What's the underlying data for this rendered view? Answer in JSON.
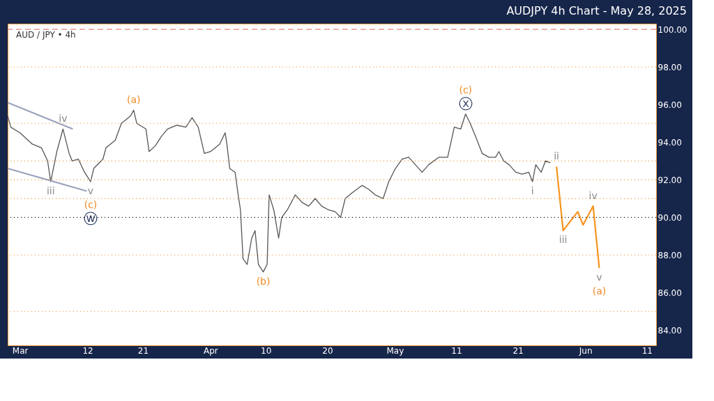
{
  "chart_data": {
    "type": "line",
    "title": "AUDJPY 4h Chart - May 28, 2025",
    "xlim": [
      "2025-02-27",
      "2025-06-12T12:00"
    ],
    "xticks": [
      {
        "value": "2025-03-01",
        "label": "Mar"
      },
      {
        "value": "2025-03-12",
        "label": "12"
      },
      {
        "value": "2025-03-21",
        "label": "21"
      },
      {
        "value": "2025-04-01",
        "label": "Apr"
      },
      {
        "value": "2025-04-10",
        "label": "10"
      },
      {
        "value": "2025-04-20",
        "label": "20"
      },
      {
        "value": "2025-05-01",
        "label": "May"
      },
      {
        "value": "2025-05-11",
        "label": "11"
      },
      {
        "value": "2025-05-21",
        "label": "21"
      },
      {
        "value": "2025-06-01",
        "label": "Jun"
      },
      {
        "value": "2025-06-11",
        "label": "11"
      }
    ],
    "ylim": [
      83.2,
      100.3
    ],
    "yticks": [
      {
        "value": 84,
        "label": "84.00"
      },
      {
        "value": 86,
        "label": "86.00"
      },
      {
        "value": 88,
        "label": "88.00"
      },
      {
        "value": 90,
        "label": "90.00"
      },
      {
        "value": 92,
        "label": "92.00"
      },
      {
        "value": 94,
        "label": "94.00"
      },
      {
        "value": 96,
        "label": "96.00"
      },
      {
        "value": 98,
        "label": "98.00"
      },
      {
        "value": 100,
        "label": "100.00"
      }
    ],
    "grid": false,
    "series": [
      {
        "color": "#555555",
        "line_style": "solid",
        "x": [
          "2025-02-27",
          "2025-02-27T12:00",
          "2025-03-01",
          "2025-03-03",
          "2025-03-04T12:00",
          "2025-03-05T12:00",
          "2025-03-06",
          "2025-03-07",
          "2025-03-08",
          "2025-03-09",
          "2025-03-09T12:00",
          "2025-03-10T12:00",
          "2025-03-11T12:00",
          "2025-03-12T12:00",
          "2025-03-13",
          "2025-03-14T12:00",
          "2025-03-15",
          "2025-03-16T12:00",
          "2025-03-17T12:00",
          "2025-03-19",
          "2025-03-19T12:00",
          "2025-03-20",
          "2025-03-21T12:00",
          "2025-03-22",
          "2025-03-23",
          "2025-03-24",
          "2025-03-25",
          "2025-03-26T12:00",
          "2025-03-28",
          "2025-03-29",
          "2025-03-30",
          "2025-03-31",
          "2025-04-01",
          "2025-04-02T12:00",
          "2025-04-03T09:00",
          "2025-04-03T16:00",
          "2025-04-04T03:00",
          "2025-04-05",
          "2025-04-05T12:00",
          "2025-04-05T21:00",
          "2025-04-06T07:00",
          "2025-04-06T23:00",
          "2025-04-07T17:00",
          "2025-04-08T06:00",
          "2025-04-08T19:00",
          "2025-04-09T14:00",
          "2025-04-10T05:00",
          "2025-04-10T13:00",
          "2025-04-11T07:00",
          "2025-04-12T02:00",
          "2025-04-12T14:00",
          "2025-04-13T12:00",
          "2025-04-14T19:00",
          "2025-04-15T21:00",
          "2025-04-16T23:00",
          "2025-04-18T01:00",
          "2025-04-19T02:00",
          "2025-04-20T05:00",
          "2025-04-21T07:00",
          "2025-04-22T04:00",
          "2025-04-22T22:00",
          "2025-04-24",
          "2025-04-25T16:00",
          "2025-04-26T17:00",
          "2025-04-27T19:00",
          "2025-04-29T02:00",
          "2025-04-30",
          "2025-05-01T02:00",
          "2025-05-02T04:00",
          "2025-05-03T06:00",
          "2025-05-04T08:00",
          "2025-05-05T10:00",
          "2025-05-06T12:00",
          "2025-05-08T04:00",
          "2025-05-09T14:00",
          "2025-05-10T16:00",
          "2025-05-11T17:00",
          "2025-05-12T12:00",
          "2025-05-13T06:00",
          "2025-05-14T03:00",
          "2025-05-15T05:00",
          "2025-05-16T07:00",
          "2025-05-17T09:00",
          "2025-05-17T22:00",
          "2025-05-18T17:00",
          "2025-05-19T14:00",
          "2025-05-20T16:00",
          "2025-05-21T17:00",
          "2025-05-22T19:00",
          "2025-05-23T09:00",
          "2025-05-23T22:00",
          "2025-05-24T19:00",
          "2025-05-25T12:00",
          "2025-05-26T07:00"
        ],
        "values": [
          95.4,
          94.8,
          94.5,
          93.9,
          93.7,
          93.0,
          91.9,
          93.5,
          94.7,
          93.4,
          93.0,
          93.1,
          92.4,
          91.9,
          92.6,
          93.1,
          93.7,
          94.1,
          95.0,
          95.4,
          95.7,
          95.0,
          94.7,
          93.5,
          93.8,
          94.3,
          94.7,
          94.9,
          94.8,
          95.3,
          94.8,
          93.4,
          93.5,
          93.9,
          94.5,
          93.9,
          92.6,
          92.4,
          91.2,
          90.4,
          87.8,
          87.5,
          88.9,
          89.3,
          87.5,
          87.1,
          87.5,
          91.2,
          90.4,
          88.9,
          90.0,
          90.4,
          91.2,
          90.8,
          90.6,
          91.0,
          90.6,
          90.4,
          90.3,
          90.0,
          91.0,
          91.3,
          91.7,
          91.5,
          91.2,
          91.0,
          91.9,
          92.6,
          93.1,
          93.2,
          92.8,
          92.4,
          92.8,
          93.2,
          93.2,
          94.8,
          94.7,
          95.5,
          95.0,
          94.3,
          93.4,
          93.2,
          93.2,
          93.5,
          93.0,
          92.8,
          92.4,
          92.3,
          92.4,
          91.9,
          92.8,
          92.4,
          93.0,
          92.9
        ]
      },
      {
        "color": "#f7931e",
        "line_style": "solid",
        "x": [
          "2025-05-27T07:00",
          "2025-05-28T09:00",
          "2025-05-30T18:00",
          "2025-05-31T15:00",
          "2025-06-02T06:00",
          "2025-06-03T06:00"
        ],
        "values": [
          92.7,
          89.3,
          90.3,
          89.6,
          90.6,
          87.3
        ]
      },
      {
        "color": "#9aa3bd",
        "line_style": "solid",
        "x": [
          "2025-02-27T01:00",
          "2025-03-09T14:00"
        ],
        "values": [
          96.1,
          94.7
        ]
      },
      {
        "color": "#9aa3bd",
        "line_style": "solid",
        "x": [
          "2025-02-27T01:00",
          "2025-03-11T21:00"
        ],
        "values": [
          92.6,
          91.4
        ]
      }
    ],
    "ref_lines": [
      {
        "axis": "y",
        "value": 100,
        "color": "#e08080",
        "line_style": "dashed"
      },
      {
        "axis": "y",
        "value": 98,
        "color": "#f5a04a",
        "line_style": "dotted"
      },
      {
        "axis": "y",
        "value": 95,
        "color": "#f5a04a",
        "line_style": "dotted"
      },
      {
        "axis": "y",
        "value": 93,
        "color": "#f5a04a",
        "line_style": "dotted"
      },
      {
        "axis": "y",
        "value": 92,
        "color": "#f5a04a",
        "line_style": "dotted"
      },
      {
        "axis": "y",
        "value": 91,
        "color": "#f5a04a",
        "line_style": "dotted"
      },
      {
        "axis": "y",
        "value": 90,
        "color": "#000000",
        "line_style": "dotted"
      },
      {
        "axis": "y",
        "value": 88,
        "color": "#f5a04a",
        "line_style": "dotted"
      },
      {
        "axis": "y",
        "value": 85,
        "color": "#f5a04a",
        "line_style": "dotted"
      }
    ],
    "annotations": [
      "AUD / JPY • 4h",
      {
        "text": "(a)",
        "x": "2025-03-19T12:00",
        "y": 95.7
      },
      {
        "text": "iv",
        "x": "2025-03-08",
        "y": 94.7
      },
      {
        "text": "iii",
        "x": "2025-03-06",
        "y": 91.9
      },
      {
        "text": "v",
        "x": "2025-03-12T12:00",
        "y": 91.9
      },
      {
        "text": "(c)",
        "x": "2025-03-12T12:00",
        "y": 91.9
      },
      {
        "text": "ⓦ",
        "x": "2025-03-12T12:00",
        "y": 91.9
      },
      {
        "text": "(b)",
        "x": "2025-04-09T14:00",
        "y": 87.1
      },
      {
        "text": "ⓧ",
        "x": "2025-05-12T12:00",
        "y": 95.5
      },
      {
        "text": "(c)",
        "x": "2025-05-12T12:00",
        "y": 95.5
      },
      {
        "text": "ii",
        "x": "2025-05-27T07:00",
        "y": 92.7
      },
      {
        "text": "i",
        "x": "2025-05-23T09:00",
        "y": 91.9
      },
      {
        "text": "iii",
        "x": "2025-05-28T09:00",
        "y": 89.3
      },
      {
        "text": "iv",
        "x": "2025-06-02T06:00",
        "y": 90.6
      },
      {
        "text": "v",
        "x": "2025-06-03T06:00",
        "y": 87.3
      },
      {
        "text": "(a)",
        "x": "2025-06-03T06:00",
        "y": 87.3
      }
    ]
  }
}
